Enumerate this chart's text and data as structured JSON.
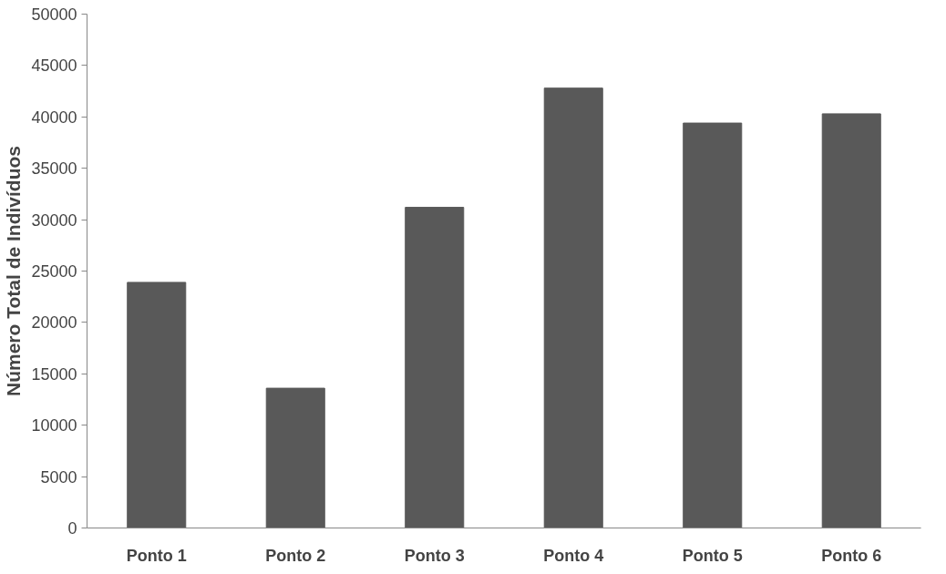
{
  "chart_data": {
    "type": "bar",
    "ylabel": "Número Total de Indivíduos",
    "categories": [
      "Ponto 1",
      "Ponto 2",
      "Ponto 3",
      "Ponto 4",
      "Ponto 5",
      "Ponto 6"
    ],
    "values": [
      23900,
      13600,
      31200,
      42800,
      39400,
      40300
    ],
    "color": "#595959",
    "ylim": [
      0,
      50000
    ],
    "yticks": [
      0,
      5000,
      10000,
      15000,
      20000,
      25000,
      30000,
      35000,
      40000,
      45000,
      50000
    ],
    "grid": false
  }
}
